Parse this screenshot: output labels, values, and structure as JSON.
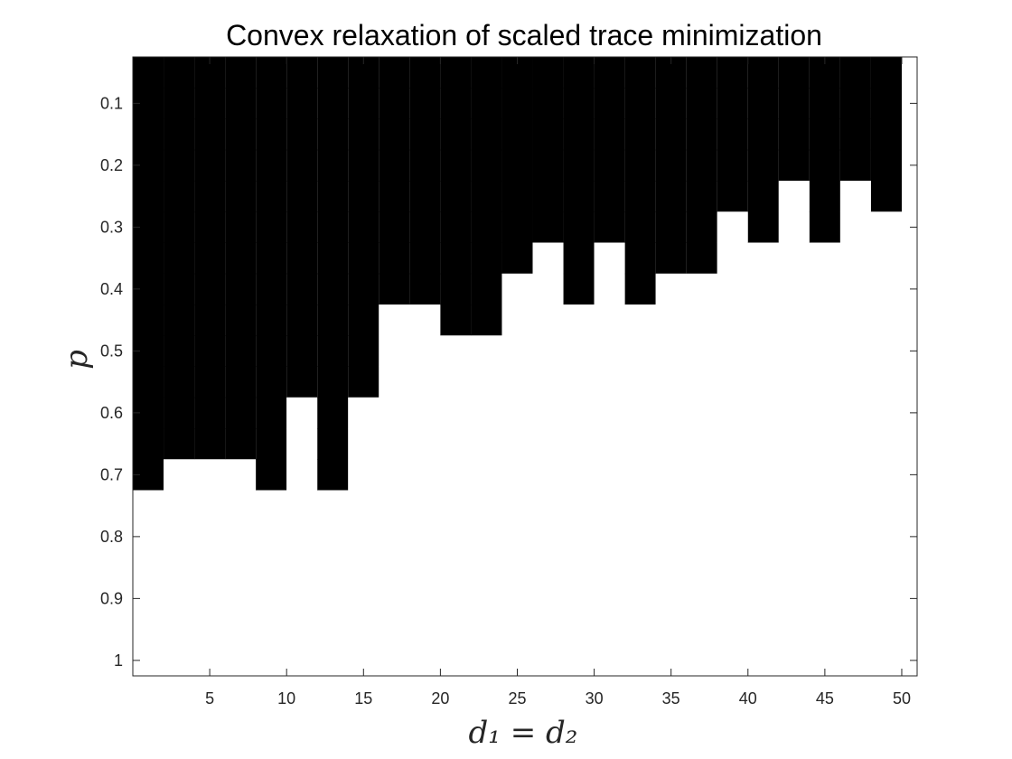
{
  "chart_data": {
    "type": "heatmap",
    "title": "Convex relaxation of scaled trace minimization",
    "xlabel": "d₁ = d₂",
    "ylabel": "p",
    "x": [
      1,
      3,
      5,
      7,
      9,
      11,
      13,
      15,
      17,
      19,
      21,
      23,
      25,
      27,
      29,
      31,
      33,
      35,
      37,
      39,
      41,
      43,
      45,
      47,
      49
    ],
    "y": [
      0.05,
      0.1,
      0.15,
      0.2,
      0.25,
      0.3,
      0.35,
      0.4,
      0.45,
      0.5,
      0.55,
      0.6,
      0.65,
      0.7,
      0.75,
      0.8,
      0.85,
      0.9,
      0.95,
      1.0
    ],
    "xlim": [
      0,
      51
    ],
    "ylim": [
      0.025,
      1.025
    ],
    "y_reversed": true,
    "xticks": [
      "5",
      "10",
      "15",
      "20",
      "25",
      "30",
      "35",
      "40",
      "45",
      "50"
    ],
    "yticks": [
      "0.1",
      "0.2",
      "0.3",
      "0.4",
      "0.5",
      "0.6",
      "0.7",
      "0.8",
      "0.9",
      "1"
    ],
    "colormap": {
      "0": "#000000",
      "1": "#ffffff"
    },
    "boundary_p": [
      0.7,
      0.65,
      0.65,
      0.65,
      0.7,
      0.55,
      0.7,
      0.55,
      0.4,
      0.4,
      0.45,
      0.45,
      0.35,
      0.3,
      0.4,
      0.3,
      0.4,
      0.35,
      0.35,
      0.25,
      0.3,
      0.2,
      0.3,
      0.2,
      0.25
    ],
    "grid": false
  }
}
